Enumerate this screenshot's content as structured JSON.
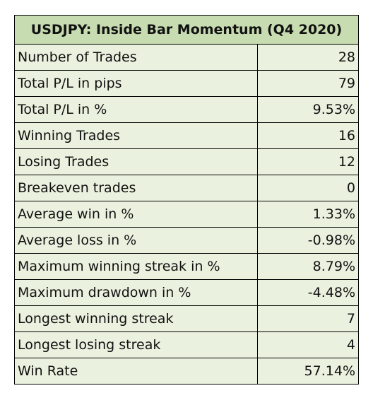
{
  "table": {
    "title": "USDJPY: Inside Bar Momentum (Q4 2020)",
    "header_color": "#c7dcb0",
    "row_color": "#ebf1df",
    "rows": [
      {
        "label": "Number of Trades",
        "value": "28"
      },
      {
        "label": "Total P/L in pips",
        "value": "79"
      },
      {
        "label": "Total P/L in %",
        "value": "9.53%"
      },
      {
        "label": "Winning Trades",
        "value": "16"
      },
      {
        "label": "Losing Trades",
        "value": "12"
      },
      {
        "label": "Breakeven trades",
        "value": "0"
      },
      {
        "label": "Average win in %",
        "value": "1.33%"
      },
      {
        "label": "Average loss in %",
        "value": "-0.98%"
      },
      {
        "label": "Maximum winning streak in %",
        "value": "8.79%"
      },
      {
        "label": "Maximum drawdown in %",
        "value": "-4.48%"
      },
      {
        "label": "Longest winning streak",
        "value": "7"
      },
      {
        "label": "Longest losing streak",
        "value": "4"
      },
      {
        "label": "Win Rate",
        "value": "57.14%"
      }
    ]
  }
}
